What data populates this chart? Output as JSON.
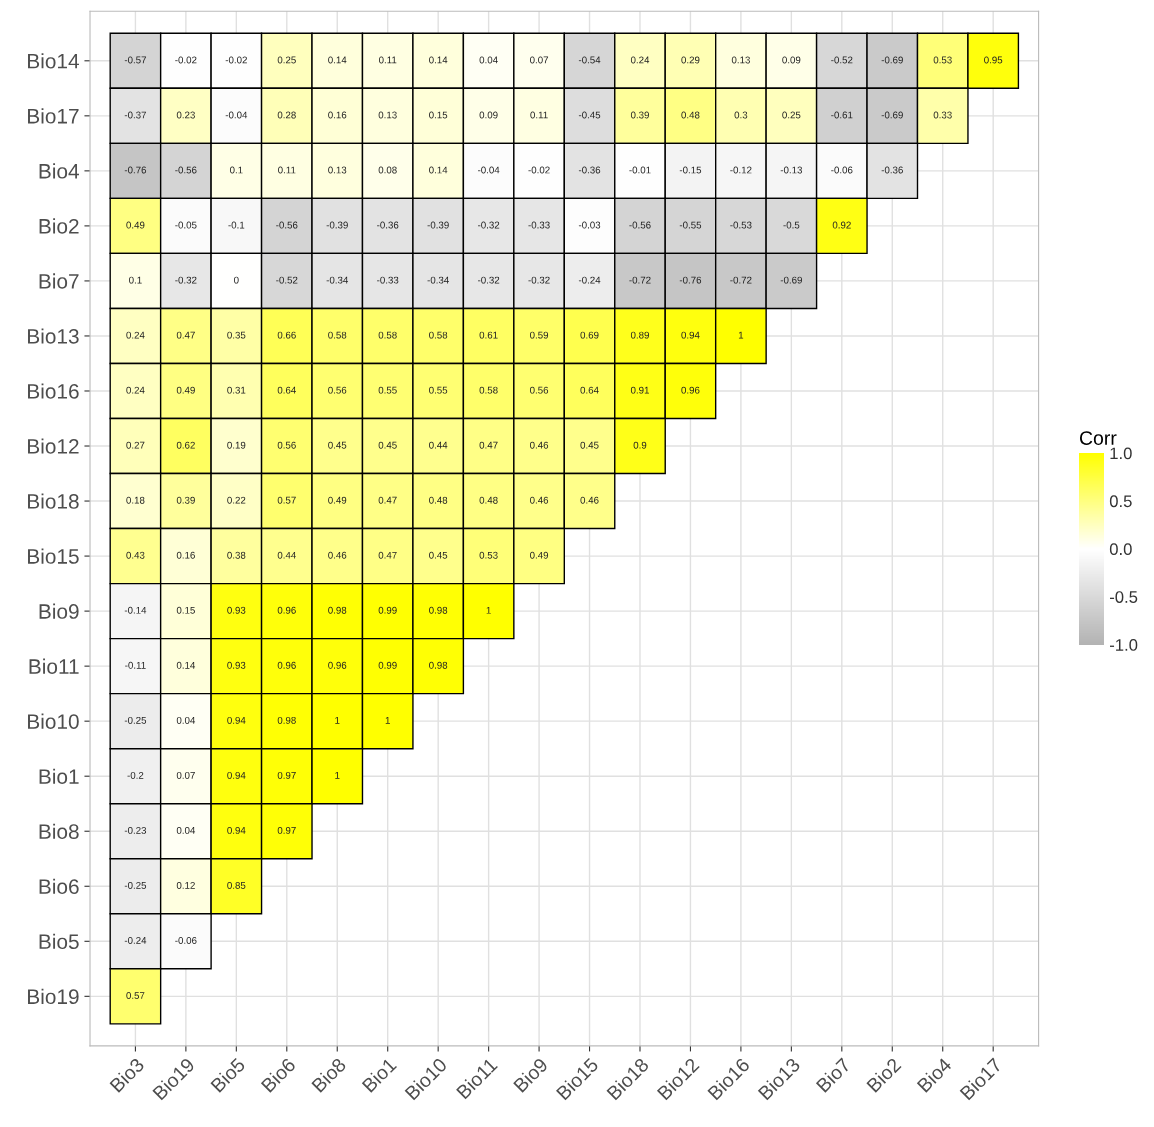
{
  "chart_data": {
    "type": "heatmap",
    "categories": [
      "Bio3",
      "Bio19",
      "Bio5",
      "Bio6",
      "Bio8",
      "Bio1",
      "Bio10",
      "Bio11",
      "Bio9",
      "Bio15",
      "Bio18",
      "Bio12",
      "Bio16",
      "Bio13",
      "Bio7",
      "Bio2",
      "Bio4",
      "Bio17"
    ],
    "y_categories": [
      "Bio14",
      "Bio17",
      "Bio4",
      "Bio2",
      "Bio7",
      "Bio13",
      "Bio16",
      "Bio12",
      "Bio18",
      "Bio15",
      "Bio9",
      "Bio11",
      "Bio10",
      "Bio1",
      "Bio8",
      "Bio6",
      "Bio5",
      "Bio19"
    ],
    "cells": [
      [
        -0.57,
        -0.02,
        -0.02,
        0.25,
        0.14,
        0.11,
        0.14,
        0.04,
        0.07,
        -0.54,
        0.24,
        0.29,
        0.13,
        0.09,
        -0.52,
        -0.69,
        0.53,
        0.95
      ],
      [
        -0.37,
        0.23,
        -0.04,
        0.28,
        0.16,
        0.13,
        0.15,
        0.09,
        0.11,
        -0.45,
        0.39,
        0.48,
        0.3,
        0.25,
        -0.61,
        -0.69,
        0.33,
        null
      ],
      [
        -0.76,
        -0.56,
        0.1,
        0.11,
        0.13,
        0.08,
        0.14,
        -0.04,
        -0.02,
        -0.36,
        -0.01,
        -0.15,
        -0.12,
        -0.13,
        -0.06,
        -0.36,
        null,
        null
      ],
      [
        0.49,
        -0.05,
        -0.1,
        -0.56,
        -0.39,
        -0.36,
        -0.39,
        -0.32,
        -0.33,
        -0.03,
        -0.56,
        -0.55,
        -0.53,
        -0.5,
        0.92,
        null,
        null,
        null
      ],
      [
        0.1,
        -0.32,
        0,
        -0.52,
        -0.34,
        -0.33,
        -0.34,
        -0.32,
        -0.32,
        -0.24,
        -0.72,
        -0.76,
        -0.72,
        -0.69,
        null,
        null,
        null,
        null
      ],
      [
        0.24,
        0.47,
        0.35,
        0.66,
        0.58,
        0.58,
        0.58,
        0.61,
        0.59,
        0.69,
        0.89,
        0.94,
        1,
        null,
        null,
        null,
        null,
        null
      ],
      [
        0.24,
        0.49,
        0.31,
        0.64,
        0.56,
        0.55,
        0.55,
        0.58,
        0.56,
        0.64,
        0.91,
        0.96,
        null,
        null,
        null,
        null,
        null,
        null
      ],
      [
        0.27,
        0.62,
        0.19,
        0.56,
        0.45,
        0.45,
        0.44,
        0.47,
        0.46,
        0.45,
        0.9,
        null,
        null,
        null,
        null,
        null,
        null,
        null
      ],
      [
        0.18,
        0.39,
        0.22,
        0.57,
        0.49,
        0.47,
        0.48,
        0.48,
        0.46,
        0.46,
        null,
        null,
        null,
        null,
        null,
        null,
        null,
        null
      ],
      [
        0.43,
        0.16,
        0.38,
        0.44,
        0.46,
        0.47,
        0.45,
        0.53,
        0.49,
        null,
        null,
        null,
        null,
        null,
        null,
        null,
        null,
        null
      ],
      [
        -0.14,
        0.15,
        0.93,
        0.96,
        0.98,
        0.99,
        0.98,
        1,
        null,
        null,
        null,
        null,
        null,
        null,
        null,
        null,
        null,
        null
      ],
      [
        -0.11,
        0.14,
        0.93,
        0.96,
        0.96,
        0.99,
        0.98,
        null,
        null,
        null,
        null,
        null,
        null,
        null,
        null,
        null,
        null,
        null
      ],
      [
        -0.25,
        0.04,
        0.94,
        0.98,
        1,
        1,
        null,
        null,
        null,
        null,
        null,
        null,
        null,
        null,
        null,
        null,
        null,
        null
      ],
      [
        -0.2,
        0.07,
        0.94,
        0.97,
        1,
        null,
        null,
        null,
        null,
        null,
        null,
        null,
        null,
        null,
        null,
        null,
        null,
        null
      ],
      [
        -0.23,
        0.04,
        0.94,
        0.97,
        null,
        null,
        null,
        null,
        null,
        null,
        null,
        null,
        null,
        null,
        null,
        null,
        null,
        null
      ],
      [
        -0.25,
        0.12,
        0.85,
        null,
        null,
        null,
        null,
        null,
        null,
        null,
        null,
        null,
        null,
        null,
        null,
        null,
        null,
        null
      ],
      [
        -0.24,
        -0.06,
        null,
        null,
        null,
        null,
        null,
        null,
        null,
        null,
        null,
        null,
        null,
        null,
        null,
        null,
        null,
        null
      ],
      [
        0.57,
        null,
        null,
        null,
        null,
        null,
        null,
        null,
        null,
        null,
        null,
        null,
        null,
        null,
        null,
        null,
        null,
        null
      ]
    ],
    "data_labels": true,
    "clabel": "Corr",
    "clim": [
      -1,
      1
    ],
    "cticks": [
      {
        "value": -1,
        "label": "-1.0"
      },
      {
        "value": -0.5,
        "label": "-0.5"
      },
      {
        "value": 0,
        "label": "0.0"
      },
      {
        "value": 0.5,
        "label": "0.5"
      },
      {
        "value": 1,
        "label": "1.0"
      }
    ],
    "colors": [
      "#b3b3b3",
      "#ffffff",
      "#ffff00"
    ],
    "grid": true
  }
}
